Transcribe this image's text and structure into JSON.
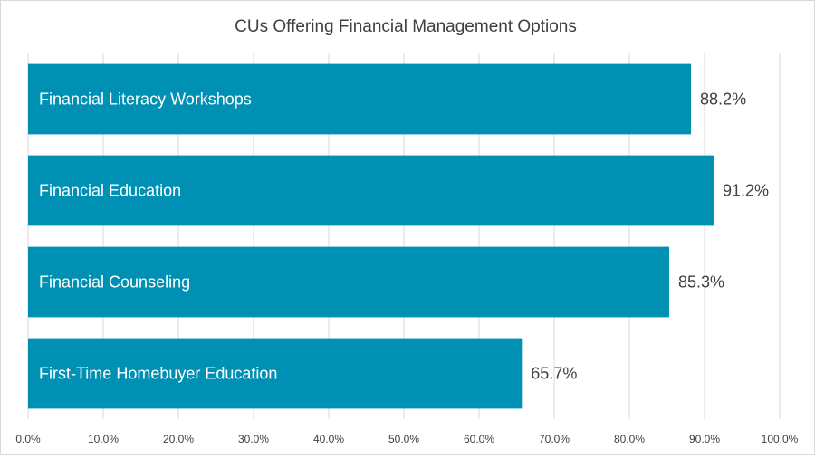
{
  "chart_data": {
    "type": "bar",
    "orientation": "horizontal",
    "title": "CUs Offering Financial Management Options",
    "categories": [
      "Financial Literacy Workshops",
      "Financial Education",
      "Financial Counseling",
      "First-Time Homebuyer Education"
    ],
    "values": [
      88.2,
      91.2,
      85.3,
      65.7
    ],
    "data_labels": [
      "88.2%",
      "91.2%",
      "85.3%",
      "65.7%"
    ],
    "xlim": [
      0,
      100
    ],
    "x_ticks": [
      "0.0%",
      "10.0%",
      "20.0%",
      "30.0%",
      "40.0%",
      "50.0%",
      "60.0%",
      "70.0%",
      "80.0%",
      "90.0%",
      "100.0%"
    ],
    "grid": true,
    "legend": "none",
    "colors": {
      "bar": "#0090b3",
      "grid": "#d9d9d9",
      "text": "#404040",
      "bar_text": "#ffffff"
    }
  }
}
